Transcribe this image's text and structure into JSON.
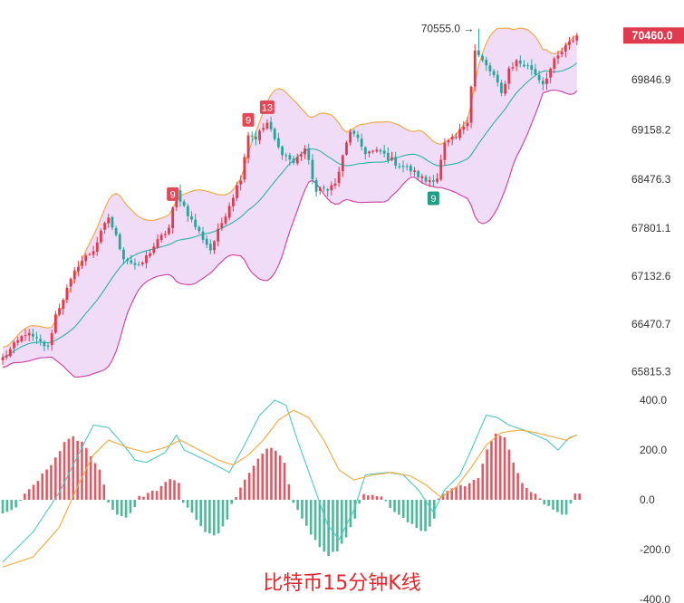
{
  "caption": "比特币15分钟K线",
  "colors": {
    "up": "#e03a4f",
    "down": "#26a69a",
    "bb_fill": "#f1dcf7",
    "bb_upper": "#f0a63a",
    "bb_lower": "#cc3c9c",
    "bb_mid": "#2bb2a4",
    "dif": "#4fc7c0",
    "dea": "#f2a93b",
    "hist_up": "#e05a66",
    "hist_down": "#4db89a",
    "price_tag_bg": "#e03a4f",
    "marker_red": "#e04a58",
    "marker_green": "#1f9e84"
  },
  "chart_data": [
    {
      "type": "candlestick",
      "title": "",
      "current_price": "70460.0",
      "max_annotation": {
        "label": "70555.0",
        "value": 70555.0,
        "candle_index": 126
      },
      "y_ticks": [
        69846.9,
        69158.2,
        68476.3,
        67801.1,
        67132.6,
        66470.7,
        65815.3
      ],
      "y_tick_labels": [
        "69846.9",
        "69158.2",
        "68476.3",
        "67801.1",
        "67132.6",
        "66470.7",
        "65815.3"
      ],
      "markers": [
        {
          "label": "9",
          "candle_index": 45,
          "position": "above",
          "color": "red"
        },
        {
          "label": "9",
          "candle_index": 65,
          "position": "above",
          "color": "red"
        },
        {
          "label": "13",
          "candle_index": 70,
          "position": "above",
          "color": "red"
        },
        {
          "label": "9",
          "candle_index": 114,
          "position": "below",
          "color": "green"
        }
      ],
      "overlays": [
        "bollinger_upper",
        "bollinger_middle",
        "bollinger_lower"
      ],
      "close_anchors": [
        [
          0,
          66000
        ],
        [
          6,
          66350
        ],
        [
          12,
          66150
        ],
        [
          14,
          66600
        ],
        [
          20,
          67300
        ],
        [
          24,
          67500
        ],
        [
          28,
          67950
        ],
        [
          32,
          67400
        ],
        [
          36,
          67250
        ],
        [
          40,
          67550
        ],
        [
          44,
          67800
        ],
        [
          46,
          68300
        ],
        [
          50,
          67900
        ],
        [
          55,
          67500
        ],
        [
          59,
          68000
        ],
        [
          63,
          68500
        ],
        [
          65,
          69100
        ],
        [
          67,
          69050
        ],
        [
          70,
          69250
        ],
        [
          73,
          68900
        ],
        [
          77,
          68700
        ],
        [
          80,
          68900
        ],
        [
          83,
          68300
        ],
        [
          88,
          68400
        ],
        [
          92,
          69150
        ],
        [
          96,
          68850
        ],
        [
          100,
          68850
        ],
        [
          104,
          68700
        ],
        [
          108,
          68600
        ],
        [
          112,
          68450
        ],
        [
          115,
          68500
        ],
        [
          117,
          68950
        ],
        [
          120,
          69050
        ],
        [
          123,
          69300
        ],
        [
          125,
          70250
        ],
        [
          127,
          70100
        ],
        [
          130,
          69900
        ],
        [
          132,
          69650
        ],
        [
          134,
          70000
        ],
        [
          136,
          70100
        ],
        [
          140,
          70000
        ],
        [
          143,
          69800
        ],
        [
          146,
          70100
        ],
        [
          149,
          70300
        ],
        [
          152,
          70460
        ]
      ]
    },
    {
      "type": "macd",
      "title": "",
      "y_ticks": [
        400,
        200,
        0,
        -200,
        -400
      ],
      "y_tick_labels": [
        "400.0",
        "200.0",
        "0.0",
        "-200.0",
        "-400.0"
      ],
      "ylim": [
        -400,
        400
      ],
      "dif_anchors": [
        [
          0,
          -250
        ],
        [
          8,
          -130
        ],
        [
          15,
          30
        ],
        [
          20,
          180
        ],
        [
          24,
          300
        ],
        [
          28,
          290
        ],
        [
          32,
          220
        ],
        [
          35,
          160
        ],
        [
          38,
          150
        ],
        [
          43,
          190
        ],
        [
          46,
          260
        ],
        [
          48,
          200
        ],
        [
          55,
          150
        ],
        [
          60,
          110
        ],
        [
          64,
          220
        ],
        [
          68,
          340
        ],
        [
          72,
          400
        ],
        [
          75,
          380
        ],
        [
          78,
          240
        ],
        [
          82,
          70
        ],
        [
          86,
          -100
        ],
        [
          89,
          -160
        ],
        [
          93,
          -40
        ],
        [
          96,
          100
        ],
        [
          102,
          110
        ],
        [
          106,
          100
        ],
        [
          110,
          40
        ],
        [
          114,
          -50
        ],
        [
          117,
          40
        ],
        [
          121,
          100
        ],
        [
          124,
          200
        ],
        [
          128,
          340
        ],
        [
          131,
          330
        ],
        [
          134,
          300
        ],
        [
          138,
          280
        ],
        [
          141,
          260
        ],
        [
          144,
          240
        ],
        [
          147,
          200
        ],
        [
          150,
          250
        ],
        [
          152,
          260
        ]
      ],
      "dea_anchors": [
        [
          0,
          -270
        ],
        [
          8,
          -230
        ],
        [
          15,
          -110
        ],
        [
          20,
          60
        ],
        [
          24,
          180
        ],
        [
          28,
          240
        ],
        [
          33,
          210
        ],
        [
          38,
          190
        ],
        [
          43,
          210
        ],
        [
          47,
          240
        ],
        [
          52,
          200
        ],
        [
          57,
          160
        ],
        [
          61,
          140
        ],
        [
          65,
          180
        ],
        [
          69,
          240
        ],
        [
          73,
          320
        ],
        [
          77,
          360
        ],
        [
          81,
          330
        ],
        [
          85,
          240
        ],
        [
          89,
          120
        ],
        [
          93,
          80
        ],
        [
          98,
          100
        ],
        [
          103,
          110
        ],
        [
          108,
          95
        ],
        [
          112,
          60
        ],
        [
          116,
          10
        ],
        [
          120,
          50
        ],
        [
          124,
          130
        ],
        [
          128,
          220
        ],
        [
          132,
          270
        ],
        [
          137,
          280
        ],
        [
          141,
          270
        ],
        [
          145,
          255
        ],
        [
          149,
          240
        ],
        [
          152,
          260
        ]
      ],
      "histogram_anchors": [
        [
          0,
          -60
        ],
        [
          3,
          -30
        ],
        [
          5,
          20
        ],
        [
          8,
          80
        ],
        [
          11,
          140
        ],
        [
          14,
          230
        ],
        [
          16,
          250
        ],
        [
          18,
          230
        ],
        [
          20,
          180
        ],
        [
          22,
          120
        ],
        [
          23,
          60
        ],
        [
          24,
          -10
        ],
        [
          26,
          -60
        ],
        [
          28,
          -70
        ],
        [
          30,
          -30
        ],
        [
          31,
          10
        ],
        [
          35,
          40
        ],
        [
          38,
          80
        ],
        [
          40,
          70
        ],
        [
          41,
          -10
        ],
        [
          43,
          -50
        ],
        [
          45,
          -110
        ],
        [
          47,
          -140
        ],
        [
          49,
          -140
        ],
        [
          51,
          -80
        ],
        [
          52,
          -20
        ],
        [
          53,
          10
        ],
        [
          56,
          110
        ],
        [
          58,
          170
        ],
        [
          60,
          210
        ],
        [
          62,
          200
        ],
        [
          64,
          150
        ],
        [
          65,
          60
        ],
        [
          66,
          -10
        ],
        [
          69,
          -110
        ],
        [
          72,
          -190
        ],
        [
          74,
          -220
        ],
        [
          76,
          -210
        ],
        [
          78,
          -150
        ],
        [
          80,
          -80
        ],
        [
          81,
          -20
        ],
        [
          82,
          20
        ],
        [
          86,
          10
        ],
        [
          87,
          -10
        ],
        [
          90,
          -60
        ],
        [
          94,
          -110
        ],
        [
          96,
          -130
        ],
        [
          98,
          -80
        ],
        [
          99,
          10
        ],
        [
          102,
          50
        ],
        [
          105,
          60
        ],
        [
          108,
          90
        ],
        [
          110,
          200
        ],
        [
          112,
          270
        ],
        [
          114,
          250
        ],
        [
          116,
          150
        ],
        [
          118,
          70
        ],
        [
          120,
          30
        ],
        [
          122,
          10
        ],
        [
          123,
          -20
        ],
        [
          126,
          -50
        ],
        [
          128,
          -60
        ],
        [
          129,
          -10
        ],
        [
          130,
          20
        ],
        [
          131,
          30
        ]
      ]
    }
  ]
}
